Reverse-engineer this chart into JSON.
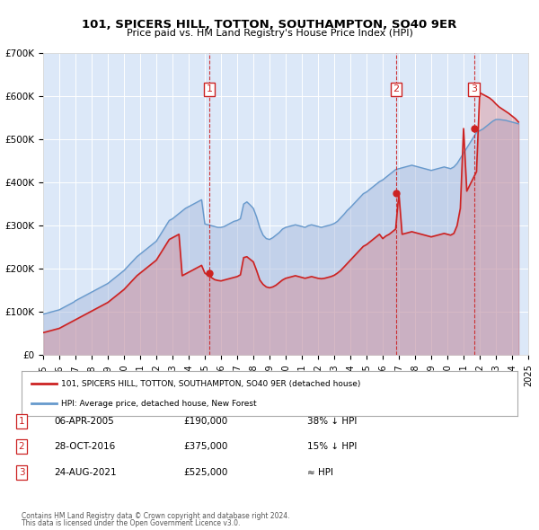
{
  "title": "101, SPICERS HILL, TOTTON, SOUTHAMPTON, SO40 9ER",
  "subtitle": "Price paid vs. HM Land Registry's House Price Index (HPI)",
  "bg_color": "#f0f4ff",
  "plot_bg_color": "#dce8f8",
  "legend_label_red": "101, SPICERS HILL, TOTTON, SOUTHAMPTON, SO40 9ER (detached house)",
  "legend_label_blue": "HPI: Average price, detached house, New Forest",
  "footer1": "Contains HM Land Registry data © Crown copyright and database right 2024.",
  "footer2": "This data is licensed under the Open Government Licence v3.0.",
  "transactions": [
    {
      "num": 1,
      "date_label": "06-APR-2005",
      "price": 190000,
      "hpi_label": "38% ↓ HPI",
      "x_year": 2005.27
    },
    {
      "num": 2,
      "date_label": "28-OCT-2016",
      "price": 375000,
      "hpi_label": "15% ↓ HPI",
      "x_year": 2016.83
    },
    {
      "num": 3,
      "date_label": "24-AUG-2021",
      "price": 525000,
      "hpi_label": "≈ HPI",
      "x_year": 2021.65
    }
  ],
  "hpi_data": {
    "years": [
      1995.0,
      1995.1,
      1995.2,
      1995.3,
      1995.4,
      1995.5,
      1995.6,
      1995.7,
      1995.8,
      1995.9,
      1996.0,
      1996.1,
      1996.2,
      1996.3,
      1996.4,
      1996.5,
      1996.6,
      1996.7,
      1996.8,
      1996.9,
      1997.0,
      1997.2,
      1997.4,
      1997.6,
      1997.8,
      1998.0,
      1998.2,
      1998.4,
      1998.6,
      1998.8,
      1999.0,
      1999.2,
      1999.4,
      1999.6,
      1999.8,
      2000.0,
      2000.2,
      2000.4,
      2000.6,
      2000.8,
      2001.0,
      2001.2,
      2001.4,
      2001.6,
      2001.8,
      2002.0,
      2002.2,
      2002.4,
      2002.6,
      2002.8,
      2003.0,
      2003.2,
      2003.4,
      2003.6,
      2003.8,
      2004.0,
      2004.2,
      2004.4,
      2004.6,
      2004.8,
      2005.0,
      2005.2,
      2005.4,
      2005.6,
      2005.8,
      2006.0,
      2006.2,
      2006.4,
      2006.6,
      2006.8,
      2007.0,
      2007.2,
      2007.4,
      2007.6,
      2007.8,
      2008.0,
      2008.2,
      2008.4,
      2008.6,
      2008.8,
      2009.0,
      2009.2,
      2009.4,
      2009.6,
      2009.8,
      2010.0,
      2010.2,
      2010.4,
      2010.6,
      2010.8,
      2011.0,
      2011.2,
      2011.4,
      2011.6,
      2011.8,
      2012.0,
      2012.2,
      2012.4,
      2012.6,
      2012.8,
      2013.0,
      2013.2,
      2013.4,
      2013.6,
      2013.8,
      2014.0,
      2014.2,
      2014.4,
      2014.6,
      2014.8,
      2015.0,
      2015.2,
      2015.4,
      2015.6,
      2015.8,
      2016.0,
      2016.2,
      2016.4,
      2016.6,
      2016.8,
      2017.0,
      2017.2,
      2017.4,
      2017.6,
      2017.8,
      2018.0,
      2018.2,
      2018.4,
      2018.6,
      2018.8,
      2019.0,
      2019.2,
      2019.4,
      2019.6,
      2019.8,
      2020.0,
      2020.2,
      2020.4,
      2020.6,
      2020.8,
      2021.0,
      2021.2,
      2021.4,
      2021.6,
      2021.8,
      2022.0,
      2022.2,
      2022.4,
      2022.6,
      2022.8,
      2023.0,
      2023.2,
      2023.4,
      2023.6,
      2023.8,
      2024.0,
      2024.2,
      2024.4
    ],
    "values": [
      95000,
      96000,
      97000,
      98000,
      99000,
      100000,
      101000,
      102000,
      103000,
      104000,
      105000,
      107000,
      109000,
      111000,
      113000,
      115000,
      117000,
      119000,
      121000,
      123000,
      126000,
      130000,
      134000,
      138000,
      142000,
      146000,
      150000,
      154000,
      158000,
      162000,
      166000,
      172000,
      178000,
      184000,
      190000,
      196000,
      204000,
      212000,
      220000,
      228000,
      234000,
      240000,
      246000,
      252000,
      258000,
      264000,
      276000,
      288000,
      300000,
      312000,
      316000,
      322000,
      328000,
      334000,
      340000,
      344000,
      348000,
      352000,
      356000,
      360000,
      304000,
      302000,
      300000,
      298000,
      296000,
      296000,
      298000,
      302000,
      306000,
      310000,
      312000,
      316000,
      350000,
      355000,
      348000,
      340000,
      320000,
      295000,
      278000,
      270000,
      268000,
      272000,
      278000,
      284000,
      292000,
      296000,
      298000,
      300000,
      302000,
      300000,
      298000,
      296000,
      300000,
      302000,
      300000,
      298000,
      296000,
      298000,
      300000,
      302000,
      305000,
      310000,
      318000,
      326000,
      335000,
      342000,
      350000,
      358000,
      366000,
      374000,
      378000,
      384000,
      390000,
      396000,
      402000,
      406000,
      412000,
      418000,
      424000,
      430000,
      432000,
      434000,
      436000,
      438000,
      440000,
      438000,
      436000,
      434000,
      432000,
      430000,
      428000,
      430000,
      432000,
      434000,
      436000,
      434000,
      432000,
      436000,
      444000,
      456000,
      468000,
      480000,
      492000,
      504000,
      516000,
      520000,
      524000,
      530000,
      536000,
      542000,
      546000,
      546000,
      545000,
      544000,
      542000,
      540000,
      538000,
      536000
    ]
  },
  "price_paid_data": {
    "years": [
      1995.0,
      1995.1,
      1995.2,
      1995.3,
      1995.4,
      1995.5,
      1995.6,
      1995.7,
      1995.8,
      1995.9,
      1996.0,
      1996.1,
      1996.2,
      1996.3,
      1996.4,
      1996.5,
      1996.6,
      1996.7,
      1996.8,
      1996.9,
      1997.0,
      1997.2,
      1997.4,
      1997.6,
      1997.8,
      1998.0,
      1998.2,
      1998.4,
      1998.6,
      1998.8,
      1999.0,
      1999.2,
      1999.4,
      1999.6,
      1999.8,
      2000.0,
      2000.2,
      2000.4,
      2000.6,
      2000.8,
      2001.0,
      2001.2,
      2001.4,
      2001.6,
      2001.8,
      2002.0,
      2002.2,
      2002.4,
      2002.6,
      2002.8,
      2003.0,
      2003.2,
      2003.4,
      2003.6,
      2003.8,
      2004.0,
      2004.2,
      2004.4,
      2004.6,
      2004.8,
      2005.0,
      2005.2,
      2005.4,
      2005.6,
      2005.8,
      2006.0,
      2006.2,
      2006.4,
      2006.6,
      2006.8,
      2007.0,
      2007.2,
      2007.4,
      2007.6,
      2007.8,
      2008.0,
      2008.2,
      2008.4,
      2008.6,
      2008.8,
      2009.0,
      2009.2,
      2009.4,
      2009.6,
      2009.8,
      2010.0,
      2010.2,
      2010.4,
      2010.6,
      2010.8,
      2011.0,
      2011.2,
      2011.4,
      2011.6,
      2011.8,
      2012.0,
      2012.2,
      2012.4,
      2012.6,
      2012.8,
      2013.0,
      2013.2,
      2013.4,
      2013.6,
      2013.8,
      2014.0,
      2014.2,
      2014.4,
      2014.6,
      2014.8,
      2015.0,
      2015.2,
      2015.4,
      2015.6,
      2015.8,
      2016.0,
      2016.2,
      2016.4,
      2016.6,
      2016.8,
      2017.0,
      2017.2,
      2017.4,
      2017.6,
      2017.8,
      2018.0,
      2018.2,
      2018.4,
      2018.6,
      2018.8,
      2019.0,
      2019.2,
      2019.4,
      2019.6,
      2019.8,
      2020.0,
      2020.2,
      2020.4,
      2020.6,
      2020.8,
      2021.0,
      2021.2,
      2021.4,
      2021.6,
      2021.8,
      2022.0,
      2022.2,
      2022.4,
      2022.6,
      2022.8,
      2023.0,
      2023.2,
      2023.4,
      2023.6,
      2023.8,
      2024.0,
      2024.2,
      2024.4
    ],
    "values": [
      52000,
      53000,
      54000,
      55000,
      56000,
      57000,
      58000,
      59000,
      60000,
      61000,
      62000,
      64000,
      66000,
      68000,
      70000,
      72000,
      74000,
      76000,
      78000,
      80000,
      82000,
      86000,
      90000,
      94000,
      98000,
      102000,
      106000,
      110000,
      114000,
      118000,
      122000,
      128000,
      134000,
      140000,
      146000,
      152000,
      160000,
      168000,
      176000,
      184000,
      190000,
      196000,
      202000,
      208000,
      214000,
      220000,
      232000,
      244000,
      256000,
      268000,
      272000,
      276000,
      280000,
      184000,
      188000,
      192000,
      196000,
      200000,
      204000,
      208000,
      190000,
      185000,
      180000,
      175000,
      173000,
      172000,
      174000,
      176000,
      178000,
      180000,
      182000,
      186000,
      226000,
      228000,
      222000,
      216000,
      196000,
      174000,
      164000,
      158000,
      156000,
      158000,
      162000,
      168000,
      174000,
      178000,
      180000,
      182000,
      184000,
      182000,
      180000,
      178000,
      180000,
      182000,
      180000,
      178000,
      177000,
      178000,
      180000,
      182000,
      185000,
      190000,
      196000,
      204000,
      212000,
      220000,
      228000,
      236000,
      244000,
      252000,
      256000,
      262000,
      268000,
      274000,
      280000,
      270000,
      276000,
      280000,
      286000,
      292000,
      375000,
      280000,
      282000,
      284000,
      286000,
      284000,
      282000,
      280000,
      278000,
      276000,
      274000,
      276000,
      278000,
      280000,
      282000,
      280000,
      278000,
      282000,
      300000,
      340000,
      525000,
      380000,
      395000,
      410000,
      425000,
      608000,
      604000,
      600000,
      596000,
      590000,
      582000,
      575000,
      570000,
      565000,
      560000,
      554000,
      548000,
      540000
    ]
  },
  "xlim": [
    1995,
    2025
  ],
  "ylim": [
    0,
    700000
  ],
  "yticks": [
    0,
    100000,
    200000,
    300000,
    400000,
    500000,
    600000,
    700000
  ],
  "xticks": [
    1995,
    1996,
    1997,
    1998,
    1999,
    2000,
    2001,
    2002,
    2003,
    2004,
    2005,
    2006,
    2007,
    2008,
    2009,
    2010,
    2011,
    2012,
    2013,
    2014,
    2015,
    2016,
    2017,
    2018,
    2019,
    2020,
    2021,
    2022,
    2023,
    2024,
    2025
  ]
}
